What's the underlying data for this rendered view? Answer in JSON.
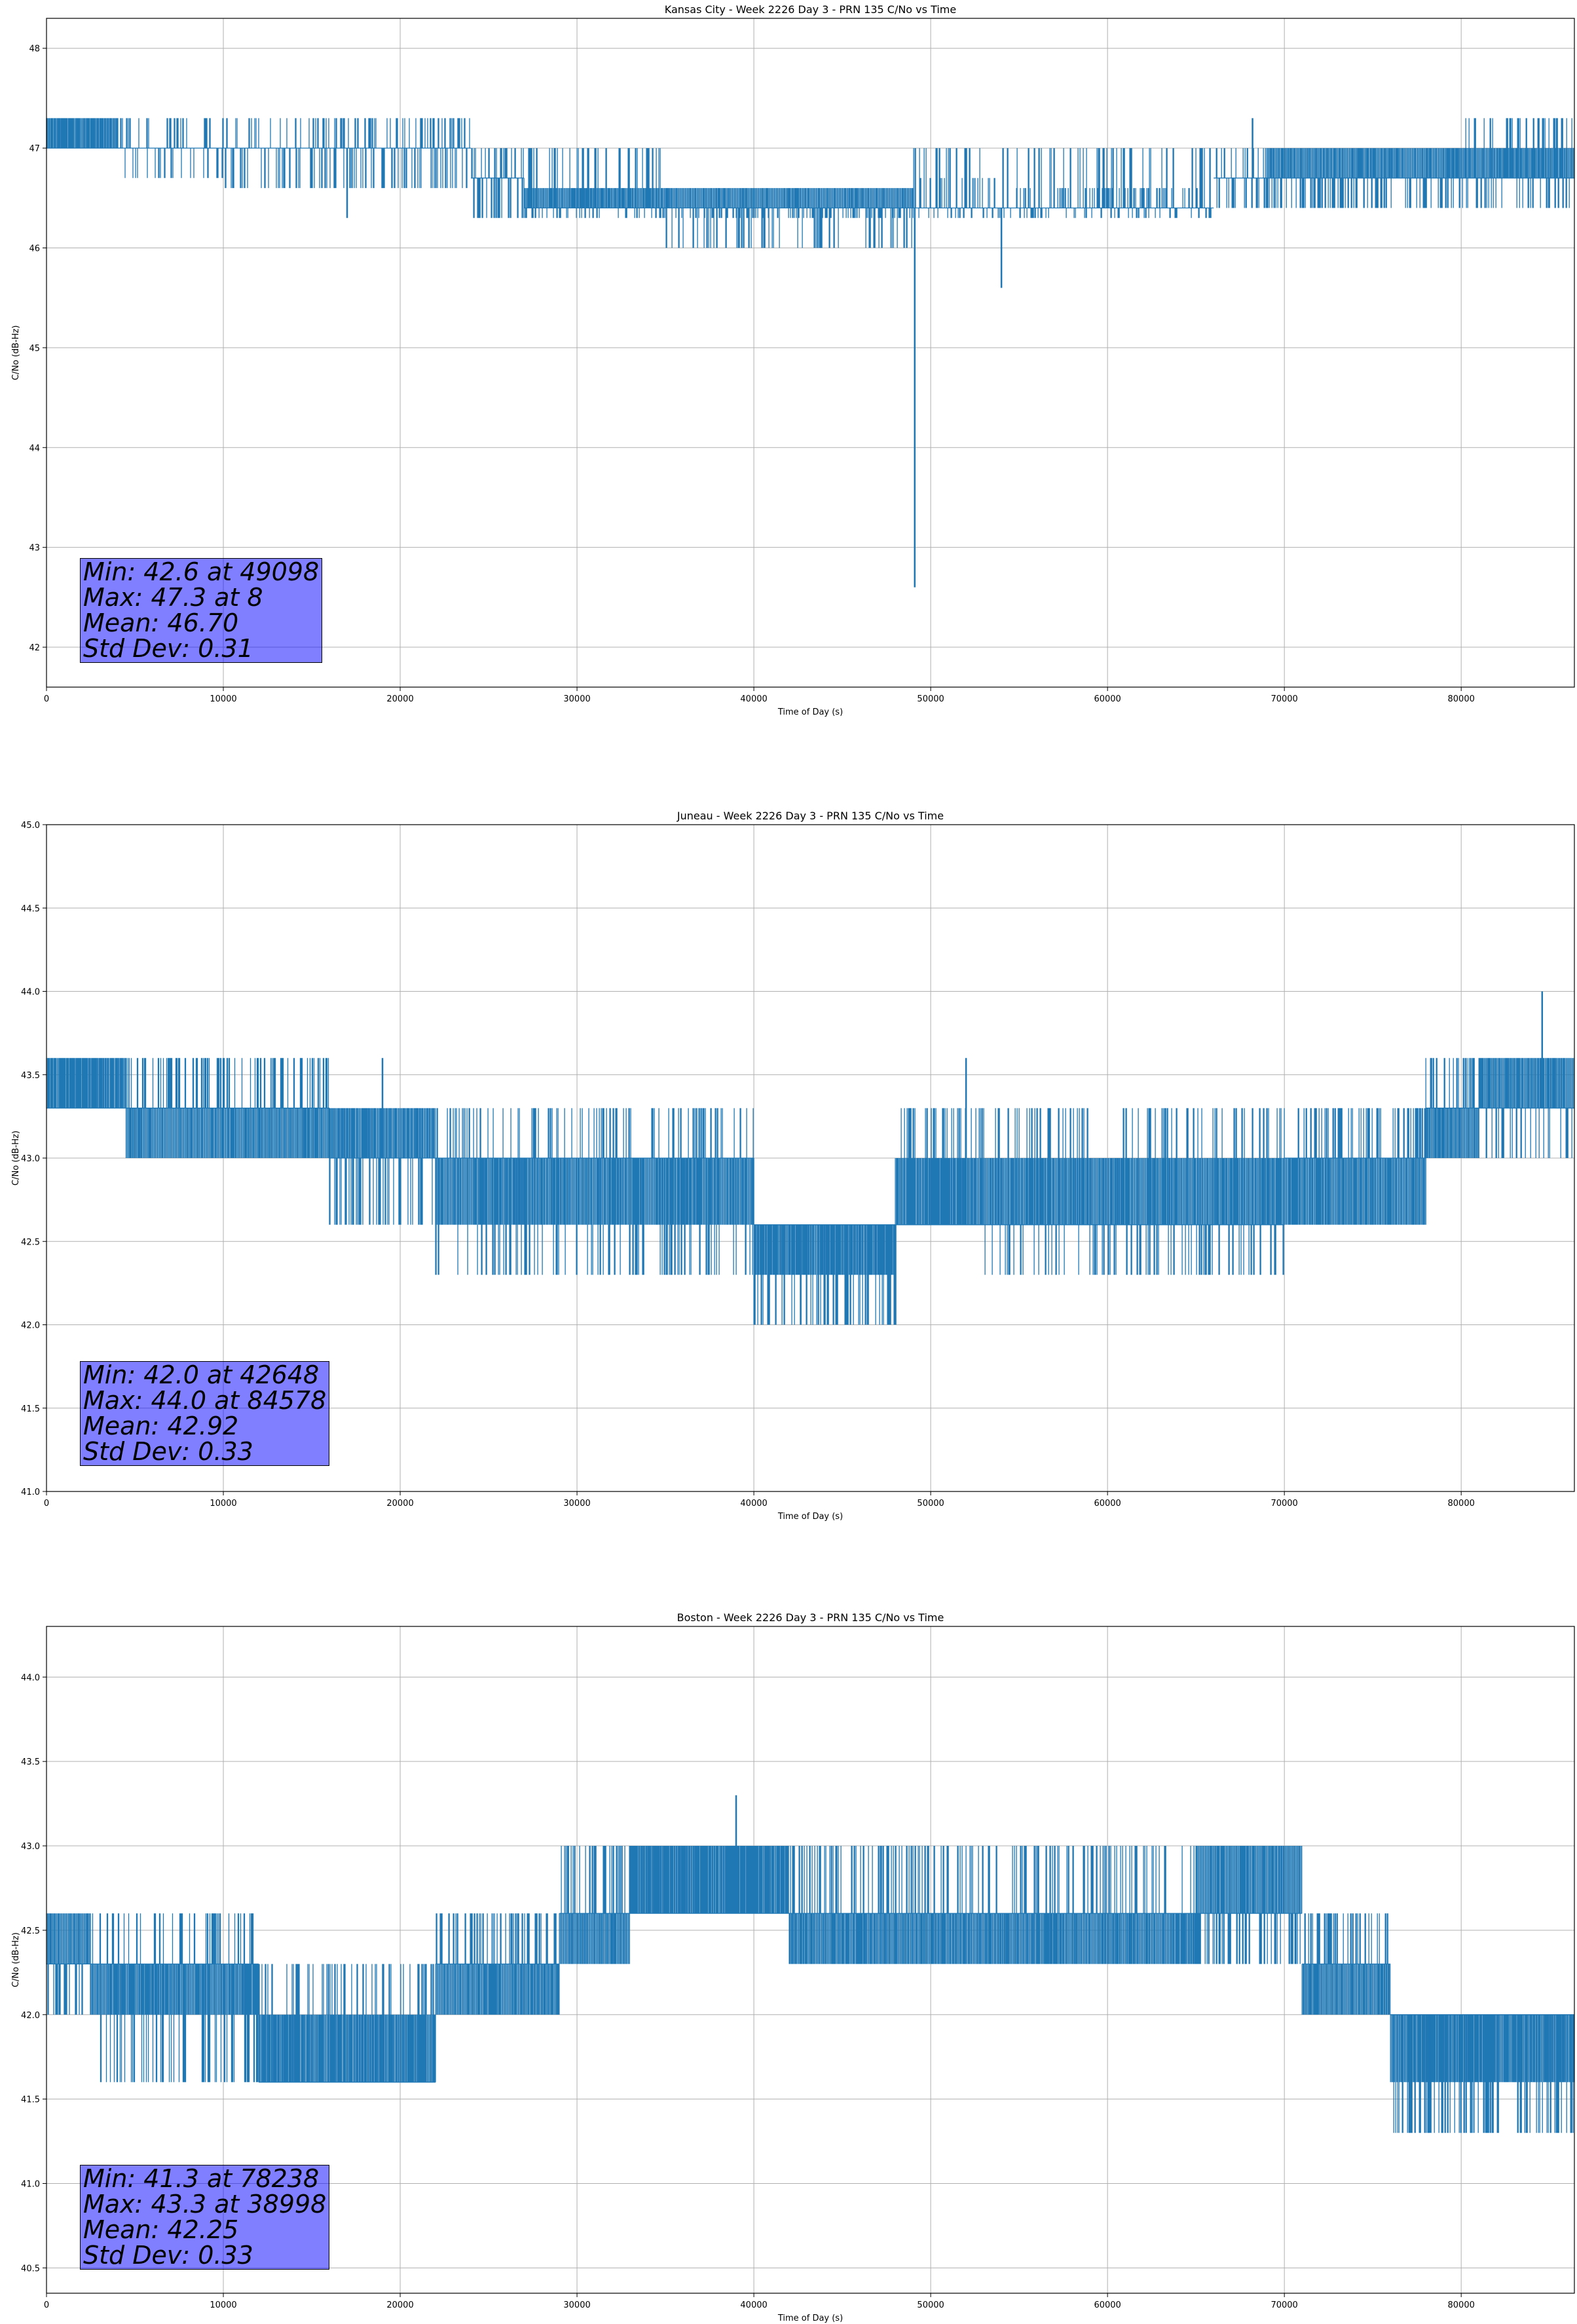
{
  "chart_data": [
    {
      "type": "line",
      "title": "Kansas City - Week 2226 Day 3 - PRN 135 C/No vs Time",
      "xlabel": "Time of Day (s)",
      "ylabel": "C/No (dB-Hz)",
      "xlim": [
        0,
        86400
      ],
      "ylim": [
        41.6,
        48.3
      ],
      "xticks": [
        0,
        10000,
        20000,
        30000,
        40000,
        50000,
        60000,
        70000,
        80000
      ],
      "yticks": [
        42,
        43,
        44,
        45,
        46,
        47,
        48
      ],
      "ytick_format": 0,
      "grid": true,
      "series_color": "#1f77b4",
      "segments": [
        {
          "x0": 0,
          "x1": 4000,
          "base": 47.0,
          "alts": [
            47.3
          ],
          "density": 0.55
        },
        {
          "x0": 4000,
          "x1": 10000,
          "base": 47.0,
          "alts": [
            47.3,
            46.7
          ],
          "density": 0.3
        },
        {
          "x0": 10000,
          "x1": 18000,
          "base": 47.0,
          "alts": [
            47.3,
            46.6
          ],
          "density": 0.35
        },
        {
          "x0": 18000,
          "x1": 24000,
          "base": 47.0,
          "alts": [
            47.3,
            46.6
          ],
          "density": 0.45
        },
        {
          "x0": 24000,
          "x1": 27000,
          "base": 46.7,
          "alts": [
            47.0,
            46.3
          ],
          "density": 0.45
        },
        {
          "x0": 27000,
          "x1": 35000,
          "base": 46.4,
          "alts": [
            46.6,
            46.3,
            47.0
          ],
          "density": 0.5
        },
        {
          "x0": 35000,
          "x1": 49000,
          "base": 46.4,
          "alts": [
            46.6,
            46.0,
            46.3
          ],
          "density": 0.5
        },
        {
          "x0": 49000,
          "x1": 54000,
          "base": 46.4,
          "alts": [
            46.7,
            47.0,
            46.3
          ],
          "density": 0.45
        },
        {
          "x0": 54000,
          "x1": 66000,
          "base": 46.4,
          "alts": [
            46.6,
            46.3,
            47.0
          ],
          "density": 0.45
        },
        {
          "x0": 66000,
          "x1": 69000,
          "base": 46.7,
          "alts": [
            46.4,
            47.0
          ],
          "density": 0.45
        },
        {
          "x0": 69000,
          "x1": 80000,
          "base": 46.7,
          "alts": [
            47.0,
            46.4
          ],
          "density": 0.5
        },
        {
          "x0": 80000,
          "x1": 86400,
          "base": 46.7,
          "alts": [
            47.0,
            47.3,
            46.4
          ],
          "density": 0.5
        }
      ],
      "spikes": [
        {
          "x": 49098,
          "y": 42.6
        },
        {
          "x": 54000,
          "y": 45.6
        },
        {
          "x": 17000,
          "y": 46.3
        },
        {
          "x": 68200,
          "y": 47.3
        }
      ],
      "stats": [
        "Min: 42.6 at 49098",
        "Max: 47.3 at 8",
        "Mean: 46.70",
        "Std Dev: 0.31"
      ]
    },
    {
      "type": "line",
      "title": "Juneau - Week 2226 Day 3 - PRN 135 C/No vs Time",
      "xlabel": "Time of Day (s)",
      "ylabel": "C/No (dB-Hz)",
      "xlim": [
        0,
        86400
      ],
      "ylim": [
        41.0,
        45.0
      ],
      "xticks": [
        0,
        10000,
        20000,
        30000,
        40000,
        50000,
        60000,
        70000,
        80000
      ],
      "yticks": [
        41.0,
        41.5,
        42.0,
        42.5,
        43.0,
        43.5,
        44.0,
        44.5,
        45.0
      ],
      "ytick_format": 1,
      "grid": true,
      "series_color": "#1f77b4",
      "segments": [
        {
          "x0": 0,
          "x1": 4500,
          "base": 43.3,
          "alts": [
            43.6
          ],
          "density": 0.55
        },
        {
          "x0": 4500,
          "x1": 16000,
          "base": 43.3,
          "alts": [
            43.0,
            43.6
          ],
          "density": 0.5
        },
        {
          "x0": 16000,
          "x1": 22000,
          "base": 43.0,
          "alts": [
            43.3,
            42.6
          ],
          "density": 0.5
        },
        {
          "x0": 22000,
          "x1": 40000,
          "base": 43.0,
          "alts": [
            42.6,
            43.3,
            42.3
          ],
          "density": 0.5
        },
        {
          "x0": 40000,
          "x1": 48000,
          "base": 42.6,
          "alts": [
            42.3,
            42.0
          ],
          "density": 0.5
        },
        {
          "x0": 48000,
          "x1": 53000,
          "base": 42.6,
          "alts": [
            43.0,
            43.3
          ],
          "density": 0.5
        },
        {
          "x0": 53000,
          "x1": 70000,
          "base": 42.6,
          "alts": [
            43.0,
            42.3,
            43.3
          ],
          "density": 0.5
        },
        {
          "x0": 70000,
          "x1": 78000,
          "base": 43.0,
          "alts": [
            42.6,
            43.3
          ],
          "density": 0.5
        },
        {
          "x0": 78000,
          "x1": 81000,
          "base": 43.3,
          "alts": [
            43.0,
            43.6
          ],
          "density": 0.5
        },
        {
          "x0": 81000,
          "x1": 86400,
          "base": 43.3,
          "alts": [
            43.6,
            43.0
          ],
          "density": 0.55
        }
      ],
      "spikes": [
        {
          "x": 84578,
          "y": 44.0
        },
        {
          "x": 52000,
          "y": 43.6
        },
        {
          "x": 19000,
          "y": 43.6
        },
        {
          "x": 42648,
          "y": 42.0
        }
      ],
      "stats": [
        "Min: 42.0 at 42648",
        "Max: 44.0 at 84578",
        "Mean: 42.92",
        "Std Dev: 0.33"
      ]
    },
    {
      "type": "line",
      "title": "Boston - Week 2226 Day 3 - PRN 135 C/No vs Time",
      "xlabel": "Time of Day (s)",
      "ylabel": "C/No (dB-Hz)",
      "xlim": [
        0,
        86400
      ],
      "ylim": [
        40.35,
        44.3
      ],
      "xticks": [
        0,
        10000,
        20000,
        30000,
        40000,
        50000,
        60000,
        70000,
        80000
      ],
      "yticks": [
        40.5,
        41.0,
        41.5,
        42.0,
        42.5,
        43.0,
        43.5,
        44.0
      ],
      "ytick_format": 1,
      "grid": true,
      "series_color": "#1f77b4",
      "segments": [
        {
          "x0": 0,
          "x1": 2500,
          "base": 42.3,
          "alts": [
            42.6,
            42.0
          ],
          "density": 0.5
        },
        {
          "x0": 2500,
          "x1": 12000,
          "base": 42.3,
          "alts": [
            42.0,
            42.6,
            41.6
          ],
          "density": 0.5
        },
        {
          "x0": 12000,
          "x1": 22000,
          "base": 41.6,
          "alts": [
            42.0,
            42.3
          ],
          "density": 0.5
        },
        {
          "x0": 22000,
          "x1": 29000,
          "base": 42.3,
          "alts": [
            42.0,
            42.6
          ],
          "density": 0.5
        },
        {
          "x0": 29000,
          "x1": 33000,
          "base": 42.6,
          "alts": [
            42.3,
            43.0
          ],
          "density": 0.5
        },
        {
          "x0": 33000,
          "x1": 42000,
          "base": 42.6,
          "alts": [
            43.0
          ],
          "density": 0.55
        },
        {
          "x0": 42000,
          "x1": 65000,
          "base": 42.6,
          "alts": [
            42.3,
            43.0
          ],
          "density": 0.5
        },
        {
          "x0": 65000,
          "x1": 71000,
          "base": 42.6,
          "alts": [
            43.0,
            42.3
          ],
          "density": 0.5
        },
        {
          "x0": 71000,
          "x1": 76000,
          "base": 42.3,
          "alts": [
            42.0,
            42.6
          ],
          "density": 0.5
        },
        {
          "x0": 76000,
          "x1": 86400,
          "base": 42.0,
          "alts": [
            41.6,
            41.3
          ],
          "density": 0.5
        }
      ],
      "spikes": [
        {
          "x": 38998,
          "y": 43.3
        },
        {
          "x": 78238,
          "y": 41.3
        },
        {
          "x": 29500,
          "y": 43.0
        }
      ],
      "stats": [
        "Min: 41.3 at 78238",
        "Max: 43.3 at 38998",
        "Mean: 42.25",
        "Std Dev: 0.33"
      ]
    }
  ]
}
